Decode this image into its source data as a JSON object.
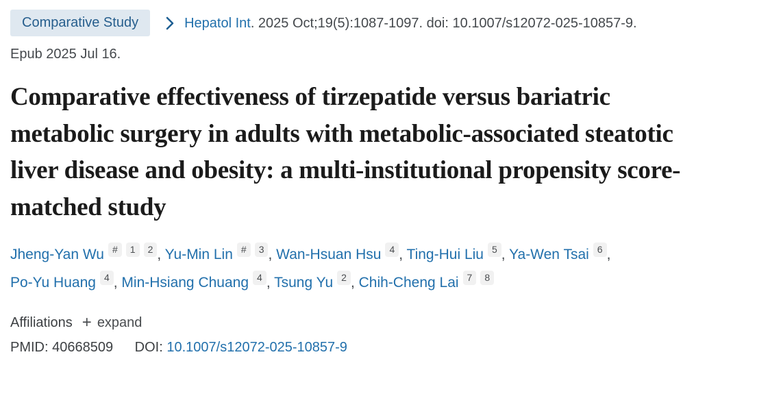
{
  "colors": {
    "link_blue": "#2270ac",
    "badge_bg": "#dfe8f0",
    "badge_text": "#265e8d",
    "body_text": "#45494d",
    "title_text": "#1b1b1b",
    "sup_bg": "#f1f1f1"
  },
  "breadcrumb": {
    "publication_type": "Comparative Study",
    "journal": "Hepatol Int",
    "citation": ". 2025 Oct;19(5):1087-1097. doi: 10.1007/s12072-025-10857-9.",
    "epub": "Epub 2025 Jul 16."
  },
  "title": "Comparative effectiveness of tirzepatide versus bariatric metabolic surgery in adults with metabolic-associated steatotic liver disease and obesity: a multi-institutional propensity score-matched study",
  "authors": [
    {
      "name": "Jheng-Yan Wu",
      "sups": [
        "#",
        "1",
        "2"
      ]
    },
    {
      "name": "Yu-Min Lin",
      "sups": [
        "#",
        "3"
      ]
    },
    {
      "name": "Wan-Hsuan Hsu",
      "sups": [
        "4"
      ]
    },
    {
      "name": "Ting-Hui Liu",
      "sups": [
        "5"
      ]
    },
    {
      "name": "Ya-Wen Tsai",
      "sups": [
        "6"
      ]
    },
    {
      "name": "Po-Yu Huang",
      "sups": [
        "4"
      ]
    },
    {
      "name": "Min-Hsiang Chuang",
      "sups": [
        "4"
      ]
    },
    {
      "name": "Tsung Yu",
      "sups": [
        "2"
      ]
    },
    {
      "name": "Chih-Cheng Lai",
      "sups": [
        "7",
        "8"
      ]
    }
  ],
  "affiliations": {
    "label": "Affiliations",
    "expand_icon": "+",
    "expand_label": "expand"
  },
  "identifiers": {
    "pmid_label": "PMID:",
    "pmid": "40668509",
    "doi_label": "DOI:",
    "doi": "10.1007/s12072-025-10857-9"
  }
}
